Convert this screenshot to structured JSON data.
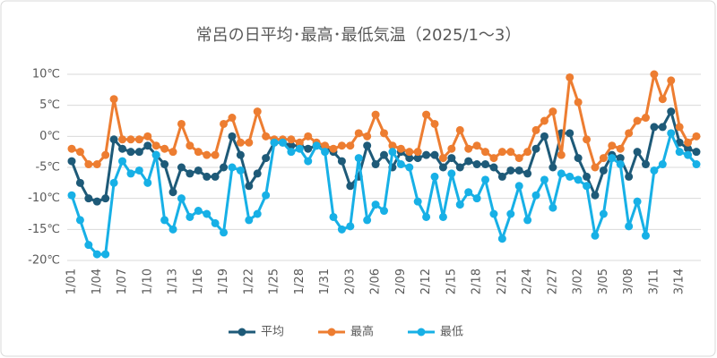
{
  "chart_data": {
    "type": "line",
    "title": "常呂の日平均･最高･最低気温（2025/1～3）",
    "categories": [
      "1/01",
      null,
      null,
      "1/04",
      null,
      null,
      "1/07",
      null,
      null,
      "1/10",
      null,
      null,
      "1/13",
      null,
      null,
      "1/16",
      null,
      null,
      "1/19",
      null,
      null,
      "1/22",
      null,
      null,
      "1/25",
      null,
      null,
      "1/28",
      null,
      null,
      "1/31",
      null,
      null,
      "2/03",
      null,
      null,
      "2/06",
      null,
      null,
      "2/09",
      null,
      null,
      "2/12",
      null,
      null,
      "2/15",
      null,
      null,
      "2/18",
      null,
      null,
      "2/21",
      null,
      null,
      "2/24",
      null,
      null,
      "2/27",
      null,
      null,
      "3/02",
      null,
      null,
      "3/05",
      null,
      null,
      "3/08",
      null,
      null,
      "3/11",
      null,
      null,
      "3/14",
      null,
      null
    ],
    "series": [
      {
        "name": "平均",
        "color": "#1e5a78",
        "values": [
          -4,
          -7.5,
          -10,
          -10.5,
          -10,
          -0.5,
          -2,
          -2.5,
          -2.5,
          -1.5,
          -3,
          -4.5,
          -9,
          -5,
          -6,
          -5.5,
          -6.5,
          -6.5,
          -5,
          0,
          -3,
          -8,
          -6,
          -3.5,
          -1,
          -1,
          -1.5,
          -1.5,
          -2,
          -1.5,
          -2,
          -2.5,
          -4,
          -8,
          -6.5,
          -1.5,
          -4.5,
          -3,
          -5,
          -2.5,
          -3.5,
          -3.5,
          -3,
          -3,
          -5,
          -3.5,
          -5,
          -4,
          -4.5,
          -4.5,
          -5,
          -6.5,
          -5.5,
          -5.5,
          -6,
          -2,
          0,
          -5,
          0.5,
          0.5,
          -3.5,
          -6.5,
          -9.5,
          -5.5,
          -3,
          -3.5,
          -6.5,
          -2.5,
          -4.5,
          1.5,
          1.5,
          4,
          -1,
          -2,
          -2.5
        ]
      },
      {
        "name": "最高",
        "color": "#ed7d31",
        "values": [
          -2,
          -2.5,
          -4.5,
          -4.5,
          -3,
          6,
          -0.5,
          -0.5,
          -0.5,
          0,
          -1.5,
          -2,
          -2.5,
          2,
          -1.5,
          -2.5,
          -3,
          -3,
          2,
          3,
          -1,
          -1,
          4,
          0,
          -0.5,
          -0.5,
          -0.5,
          -1,
          0,
          -1,
          -1.5,
          -2,
          -1.5,
          -1.5,
          0.5,
          0,
          3.5,
          0.5,
          -1.5,
          -2,
          -2.5,
          -2.5,
          3.5,
          2,
          -3.5,
          -2,
          1,
          -2,
          -1.5,
          -2.5,
          -3.5,
          -2.5,
          -2.5,
          -3.5,
          -2.5,
          1,
          2.5,
          4,
          -3,
          9.5,
          5.5,
          -0.5,
          -5,
          -3.5,
          -1.5,
          -2,
          0.5,
          2.5,
          3,
          10,
          6,
          9,
          1.5,
          -1,
          0
        ]
      },
      {
        "name": "最低",
        "color": "#17b0e6",
        "values": [
          -9.5,
          -13.5,
          -17.5,
          -19,
          -19,
          -7.5,
          -4,
          -6,
          -5.5,
          -7.5,
          -3,
          -13.5,
          -15,
          -10,
          -13,
          -12,
          -12.5,
          -14,
          -15.5,
          -5,
          -5.5,
          -13.5,
          -12.5,
          -9.5,
          -1,
          -1,
          -2.5,
          -2,
          -4,
          -1.5,
          -2.5,
          -13,
          -15,
          -14.5,
          -3.5,
          -13.5,
          -11,
          -12,
          -2.5,
          -4.5,
          -5,
          -10.5,
          -13,
          -6.5,
          -13,
          -6,
          -11,
          -9,
          -10,
          -7,
          -12.5,
          -16.5,
          -12.5,
          -8,
          -13.5,
          -9.5,
          -7,
          -11.5,
          -6,
          -6.5,
          -7,
          -8,
          -16,
          -12.5,
          -3.5,
          -4.5,
          -14.5,
          -10.5,
          -16,
          -5.5,
          -4.5,
          0.5,
          -2.5,
          -3,
          -4.5
        ]
      }
    ],
    "ylim": [
      -20,
      10
    ],
    "yticks": [
      {
        "value": -20,
        "label": "-20℃"
      },
      {
        "value": -15,
        "label": "-15℃"
      },
      {
        "value": -10,
        "label": "-10℃"
      },
      {
        "value": -5,
        "label": "-5℃"
      },
      {
        "value": 0,
        "label": "0℃"
      },
      {
        "value": 5,
        "label": "5℃"
      },
      {
        "value": 10,
        "label": "10℃"
      }
    ],
    "grid": true,
    "legend": "bottom"
  }
}
